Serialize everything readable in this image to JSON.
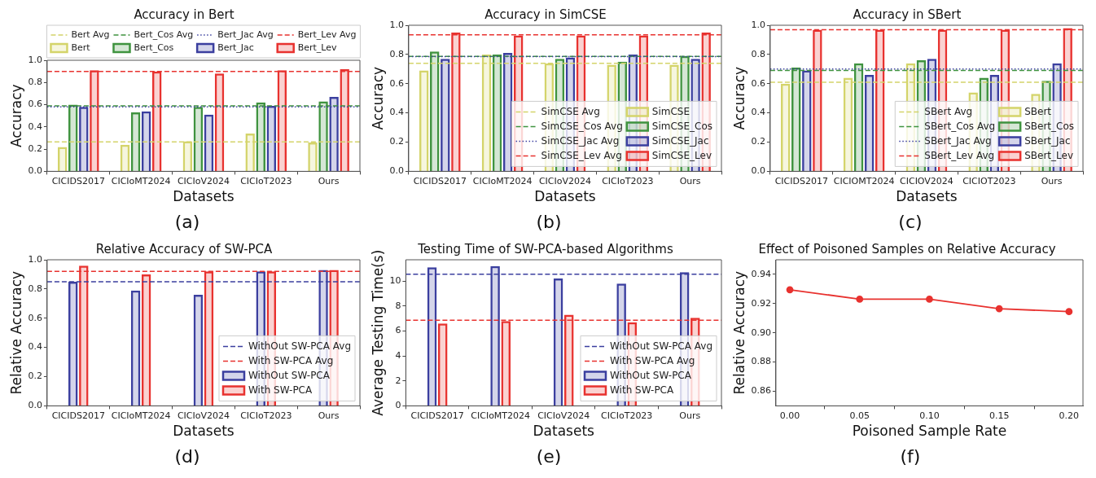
{
  "chart_data": [
    {
      "type": "bar",
      "title": "Accuracy in Bert",
      "xlabel": "Datasets",
      "ylabel": "Accuracy",
      "categories": [
        "CICIDS2017",
        "CICIoMT2024",
        "CICIoV2024",
        "CICIoT2023",
        "Ours"
      ],
      "series": [
        {
          "name": "Bert",
          "color": "#d4d46a",
          "values": [
            0.22,
            0.24,
            0.27,
            0.34,
            0.26
          ]
        },
        {
          "name": "Bert_Cos",
          "color": "#3f933f",
          "values": [
            0.6,
            0.53,
            0.58,
            0.62,
            0.63
          ]
        },
        {
          "name": "Bert_Jac",
          "color": "#3b3f9f",
          "values": [
            0.58,
            0.54,
            0.51,
            0.59,
            0.67
          ]
        },
        {
          "name": "Bert_Lev",
          "color": "#e8322f",
          "values": [
            0.91,
            0.9,
            0.88,
            0.91,
            0.92
          ]
        }
      ],
      "ylim": [
        0,
        1
      ],
      "yticks": [
        {
          "value": 0,
          "label": "0.0"
        },
        0.2,
        0.4,
        0.6,
        0.8,
        {
          "value": 1,
          "label": "1.0"
        }
      ],
      "ref_lines": [
        {
          "axis": "y",
          "value": 0.265,
          "label": "Bert Avg",
          "color": "#d4d46a",
          "line_style": "dashed"
        },
        {
          "axis": "y",
          "value": 0.59,
          "label": "Bert_Cos Avg",
          "color": "#3f933f",
          "line_style": "dashed"
        },
        {
          "axis": "y",
          "value": 0.58,
          "label": "Bert_Jac Avg",
          "color": "#3b3f9f",
          "line_style": "dotted"
        },
        {
          "axis": "y",
          "value": 0.9,
          "label": "Bert_Lev Avg",
          "color": "#e8322f",
          "line_style": "dashed"
        }
      ],
      "legend": "top",
      "annotations": [
        "(a)"
      ]
    },
    {
      "type": "bar",
      "title": "Accuracy in SimCSE",
      "xlabel": "Datasets",
      "ylabel": "Accuracy",
      "categories": [
        "CICIDS2017",
        "CICIoMT2024",
        "CICIoV2024",
        "CICIoT2023",
        "Ours"
      ],
      "series": [
        {
          "name": "SimCSE",
          "color": "#d4d46a",
          "values": [
            0.69,
            0.8,
            0.74,
            0.73,
            0.73
          ]
        },
        {
          "name": "SimCSE_Cos",
          "color": "#3f933f",
          "values": [
            0.82,
            0.8,
            0.77,
            0.75,
            0.79
          ]
        },
        {
          "name": "SimCSE_Jac",
          "color": "#3b3f9f",
          "values": [
            0.77,
            0.81,
            0.78,
            0.8,
            0.77
          ]
        },
        {
          "name": "SimCSE_Lev",
          "color": "#e8322f",
          "values": [
            0.95,
            0.93,
            0.93,
            0.93,
            0.95
          ]
        }
      ],
      "ylim": [
        0,
        1
      ],
      "yticks": [
        {
          "value": 0,
          "label": "0.0"
        },
        0.2,
        0.4,
        0.6,
        0.8,
        {
          "value": 1,
          "label": "1.0"
        }
      ],
      "ref_lines": [
        {
          "axis": "y",
          "value": 0.74,
          "label": "SimCSE Avg",
          "color": "#d4d46a",
          "line_style": "dashed"
        },
        {
          "axis": "y",
          "value": 0.787,
          "label": "SimCSE_Cos Avg",
          "color": "#3f933f",
          "line_style": "dashed"
        },
        {
          "axis": "y",
          "value": 0.785,
          "label": "SimCSE_Jac Avg",
          "color": "#3b3f9f",
          "line_style": "dotted"
        },
        {
          "axis": "y",
          "value": 0.935,
          "label": "SimCSE_Lev Avg",
          "color": "#e8322f",
          "line_style": "dashed"
        }
      ],
      "legend": "bottom right",
      "annotations": [
        "(b)"
      ]
    },
    {
      "type": "bar",
      "title": "Accuracy in SBert",
      "xlabel": "Datasets",
      "ylabel": "Accuracy",
      "categories": [
        "CICIDS2017",
        "CICIOMT2024",
        "CICIOV2024",
        "CICIOT2023",
        "Ours"
      ],
      "series": [
        {
          "name": "SBert",
          "color": "#d4d46a",
          "values": [
            0.6,
            0.64,
            0.74,
            0.54,
            0.53
          ]
        },
        {
          "name": "SBert_Cos",
          "color": "#3f933f",
          "values": [
            0.71,
            0.74,
            0.76,
            0.64,
            0.62
          ]
        },
        {
          "name": "SBert_Jac",
          "color": "#3b3f9f",
          "values": [
            0.69,
            0.66,
            0.77,
            0.66,
            0.74
          ]
        },
        {
          "name": "SBert_Lev",
          "color": "#e8322f",
          "values": [
            0.97,
            0.97,
            0.97,
            0.97,
            0.98
          ]
        }
      ],
      "ylim": [
        0,
        1
      ],
      "yticks": [
        {
          "value": 0,
          "label": "0.0"
        },
        0.2,
        0.4,
        0.6,
        0.8,
        {
          "value": 1,
          "label": "1.0"
        }
      ],
      "ref_lines": [
        {
          "axis": "y",
          "value": 0.61,
          "label": "SBert Avg",
          "color": "#d4d46a",
          "line_style": "dashed"
        },
        {
          "axis": "y",
          "value": 0.69,
          "label": "SBert_Cos Avg",
          "color": "#3f933f",
          "line_style": "dashed"
        },
        {
          "axis": "y",
          "value": 0.7,
          "label": "SBert_Jac Avg",
          "color": "#3b3f9f",
          "line_style": "dotted"
        },
        {
          "axis": "y",
          "value": 0.97,
          "label": "SBert_Lev Avg",
          "color": "#e8322f",
          "line_style": "dashed"
        }
      ],
      "legend": "bottom right",
      "annotations": [
        "(c)"
      ]
    },
    {
      "type": "bar",
      "title": "Relative Accuracy of SW-PCA",
      "xlabel": "Datasets",
      "ylabel": "Relative Accuracy",
      "categories": [
        "CICIDS2017",
        "CICIoMT2024",
        "CICIoV2024",
        "CICIoT2023",
        "Ours"
      ],
      "series": [
        {
          "name": "WithOut SW-PCA",
          "color": "#3b3f9f",
          "values": [
            0.85,
            0.79,
            0.76,
            0.92,
            0.93
          ]
        },
        {
          "name": "With SW-PCA",
          "color": "#e8322f",
          "values": [
            0.96,
            0.9,
            0.92,
            0.92,
            0.93
          ]
        }
      ],
      "ylim": [
        0,
        1
      ],
      "yticks": [
        {
          "value": 0,
          "label": "0.0"
        },
        0.2,
        0.4,
        0.6,
        0.8,
        {
          "value": 1,
          "label": "1.0"
        }
      ],
      "ref_lines": [
        {
          "axis": "y",
          "value": 0.85,
          "label": "WithOut SW-PCA Avg",
          "color": "#3b3f9f",
          "line_style": "dashed"
        },
        {
          "axis": "y",
          "value": 0.92,
          "label": "With SW-PCA Avg",
          "color": "#e8322f",
          "line_style": "dashed"
        }
      ],
      "legend": "bottom right",
      "annotations": [
        "(d)"
      ]
    },
    {
      "type": "bar",
      "title": "Testing Time of SW-PCA-based Algorithms",
      "xlabel": "Datasets",
      "ylabel": "Average Testing Time(s)",
      "categories": [
        "CICIDS2017",
        "CICIoMT2024",
        "CICIoV2024",
        "CICIoT2023",
        "Ours"
      ],
      "series": [
        {
          "name": "WithOut SW-PCA",
          "color": "#3b3f9f",
          "values": [
            11.1,
            11.2,
            10.2,
            9.8,
            10.7
          ]
        },
        {
          "name": "With SW-PCA",
          "color": "#e8322f",
          "values": [
            6.6,
            6.8,
            7.3,
            6.7,
            7.05
          ]
        }
      ],
      "ylim": [
        0,
        11.7
      ],
      "yticks": [
        0,
        2,
        4,
        6,
        8,
        10
      ],
      "ref_lines": [
        {
          "axis": "y",
          "value": 10.55,
          "label": "WithOut SW-PCA Avg",
          "color": "#3b3f9f",
          "line_style": "dashed"
        },
        {
          "axis": "y",
          "value": 6.85,
          "label": "With SW-PCA Avg",
          "color": "#e8322f",
          "line_style": "dashed"
        }
      ],
      "legend": "bottom right",
      "annotations": [
        "(e)"
      ]
    },
    {
      "type": "line",
      "title": "Effect of Poisoned Samples on Relative Accuracy",
      "xlabel": "Poisoned Sample Rate",
      "ylabel": "Relative Accuracy",
      "x": [
        0,
        0.05,
        0.1,
        0.15,
        0.2
      ],
      "series": [
        {
          "color": "#e8322f",
          "values": [
            0.9295,
            0.923,
            0.923,
            0.9165,
            0.9145
          ]
        }
      ],
      "xlim": [
        -0.01,
        0.21
      ],
      "xticks": [
        {
          "value": 0,
          "label": "0.00"
        },
        0.05,
        {
          "value": 0.1,
          "label": "0.10"
        },
        0.15,
        {
          "value": 0.2,
          "label": "0.20"
        }
      ],
      "ylim": [
        0.85,
        0.95
      ],
      "yticks": [
        0.86,
        0.88,
        {
          "value": 0.9,
          "label": "0.90"
        },
        0.92,
        0.94
      ],
      "marker": "circle",
      "line_style": "solid",
      "annotations": [
        "(f)"
      ]
    }
  ]
}
